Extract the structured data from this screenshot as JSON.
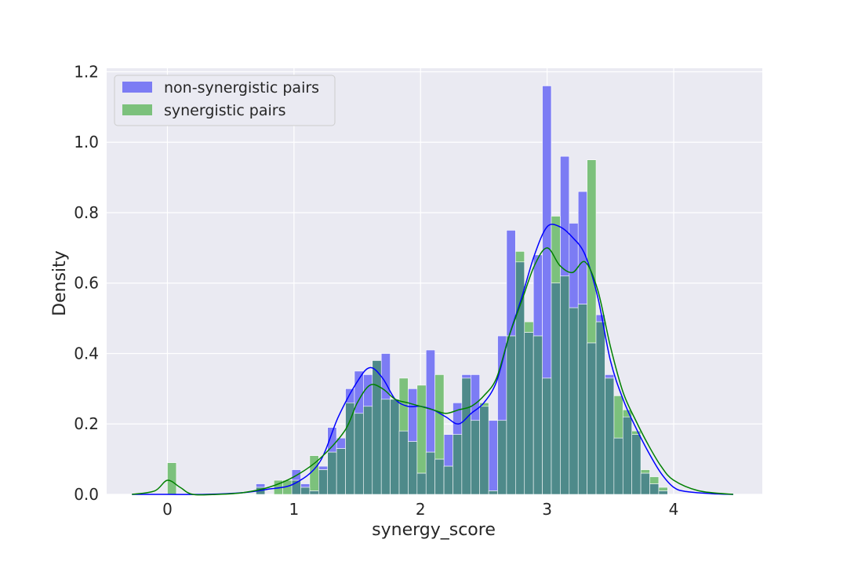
{
  "chart_data": {
    "type": "histogram",
    "xlabel": "synergy_score",
    "ylabel": "Density",
    "xlim": [
      -0.48,
      4.7
    ],
    "ylim": [
      0,
      1.21
    ],
    "x_ticks": [
      0,
      1,
      2,
      3,
      4
    ],
    "y_ticks": [
      0.0,
      0.2,
      0.4,
      0.6,
      0.8,
      1.0,
      1.2
    ],
    "y_tick_labels": [
      "0.0",
      "0.2",
      "0.4",
      "0.6",
      "0.8",
      "1.0",
      "1.2"
    ],
    "grid": true,
    "legend_position": "top-left",
    "colors": {
      "non_synergistic_bar": "#7c7cf4",
      "synergistic_bar": "#7cc17c",
      "overlap_bar": "#4e8a8a",
      "non_synergistic_kde": "#0000ff",
      "synergistic_kde": "#008000",
      "background": "#eaeaf2",
      "grid": "#ffffff"
    },
    "bin_edges_start": 0.7,
    "bin_width": 0.0707,
    "series": [
      {
        "name": "non-synergistic pairs",
        "values": [
          0.03,
          0.0,
          0.0,
          0.0,
          0.07,
          0.03,
          0.01,
          0.08,
          0.19,
          0.16,
          0.3,
          0.35,
          0.34,
          0.38,
          0.4,
          0.27,
          0.18,
          0.3,
          0.06,
          0.41,
          0.1,
          0.17,
          0.26,
          0.34,
          0.34,
          0.25,
          0.21,
          0.45,
          0.75,
          0.66,
          0.46,
          0.68,
          1.16,
          0.6,
          0.96,
          0.77,
          0.86,
          0.43,
          0.51,
          0.34,
          0.16,
          0.22,
          0.17,
          0.06,
          0.03,
          0.01,
          0.0
        ],
        "kde_x": [
          -0.28,
          0.0,
          0.3,
          0.6,
          0.8,
          1.0,
          1.2,
          1.35,
          1.5,
          1.6,
          1.7,
          1.8,
          1.9,
          2.0,
          2.1,
          2.2,
          2.3,
          2.4,
          2.5,
          2.6,
          2.7,
          2.8,
          2.9,
          3.0,
          3.1,
          3.2,
          3.3,
          3.4,
          3.5,
          3.6,
          3.7,
          3.8,
          3.9,
          4.0,
          4.1,
          4.3,
          4.47
        ],
        "kde_y": [
          0.0,
          0.0,
          0.0,
          0.005,
          0.015,
          0.03,
          0.09,
          0.22,
          0.32,
          0.36,
          0.33,
          0.27,
          0.25,
          0.25,
          0.24,
          0.22,
          0.2,
          0.23,
          0.26,
          0.32,
          0.45,
          0.56,
          0.68,
          0.76,
          0.76,
          0.73,
          0.68,
          0.56,
          0.38,
          0.27,
          0.19,
          0.12,
          0.06,
          0.02,
          0.008,
          0.002,
          0.0
        ]
      },
      {
        "name": "synergistic pairs",
        "values": [
          0.02,
          0.0,
          0.04,
          0.04,
          0.04,
          0.02,
          0.11,
          0.07,
          0.12,
          0.13,
          0.26,
          0.23,
          0.25,
          0.38,
          0.27,
          0.27,
          0.33,
          0.15,
          0.31,
          0.12,
          0.34,
          0.08,
          0.17,
          0.33,
          0.21,
          0.26,
          0.01,
          0.21,
          0.45,
          0.69,
          0.49,
          0.45,
          0.33,
          0.79,
          0.62,
          0.53,
          0.54,
          0.95,
          0.49,
          0.33,
          0.28,
          0.24,
          0.18,
          0.07,
          0.05,
          0.02,
          0.0
        ],
        "extra_bar": {
          "x": 0.0,
          "value": 0.09
        },
        "kde_x": [
          -0.28,
          -0.1,
          0.0,
          0.1,
          0.2,
          0.4,
          0.6,
          0.8,
          1.0,
          1.2,
          1.4,
          1.5,
          1.6,
          1.7,
          1.8,
          1.9,
          2.0,
          2.1,
          2.2,
          2.3,
          2.4,
          2.5,
          2.6,
          2.7,
          2.8,
          2.9,
          3.0,
          3.1,
          3.2,
          3.3,
          3.4,
          3.5,
          3.6,
          3.7,
          3.8,
          3.9,
          4.0,
          4.2,
          4.47
        ],
        "kde_y": [
          0.0,
          0.01,
          0.04,
          0.02,
          0.0,
          0.0,
          0.005,
          0.02,
          0.05,
          0.1,
          0.18,
          0.26,
          0.31,
          0.3,
          0.27,
          0.26,
          0.25,
          0.24,
          0.23,
          0.24,
          0.25,
          0.28,
          0.33,
          0.45,
          0.55,
          0.65,
          0.7,
          0.65,
          0.63,
          0.66,
          0.58,
          0.42,
          0.29,
          0.21,
          0.14,
          0.08,
          0.04,
          0.01,
          0.0
        ]
      }
    ]
  }
}
